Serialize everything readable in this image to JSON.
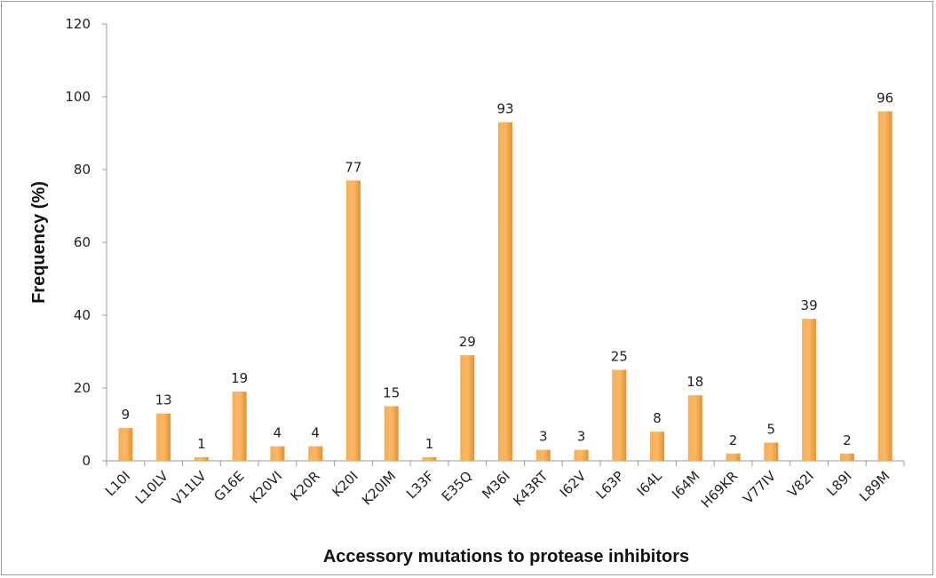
{
  "chart_data": {
    "type": "bar",
    "title": "",
    "xlabel": "Accessory mutations to protease inhibitors",
    "ylabel": "Frequency (%)",
    "ylim": [
      0,
      120
    ],
    "yticks": [
      0,
      20,
      40,
      60,
      80,
      100,
      120
    ],
    "grid": false,
    "categories": [
      "L10I",
      "L10LV",
      "V11LV",
      "G16E",
      "K20VI",
      "K20R",
      "K20I",
      "K20IM",
      "L33F",
      "E35Q",
      "M36I",
      "K43RT",
      "I62V",
      "L63P",
      "I64L",
      "I64M",
      "H69KR",
      "V77IV",
      "V82I",
      "L89I",
      "L89M"
    ],
    "values": [
      9,
      13,
      1,
      19,
      4,
      4,
      77,
      15,
      1,
      29,
      93,
      3,
      3,
      25,
      8,
      18,
      2,
      5,
      39,
      2,
      96
    ],
    "bar_color": "#F5A043"
  }
}
